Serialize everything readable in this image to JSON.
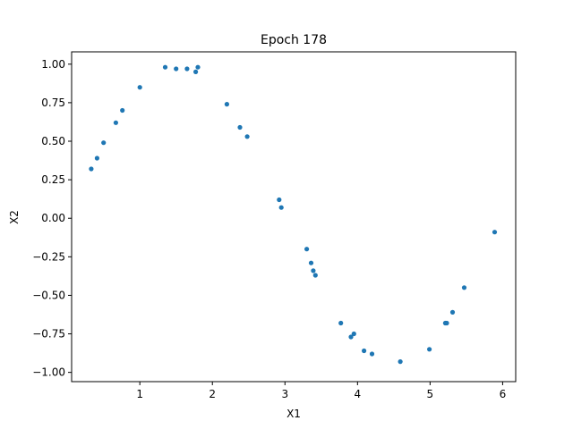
{
  "chart_data": {
    "type": "scatter",
    "title": "Epoch 178",
    "xlabel": "X1",
    "ylabel": "X2",
    "xlim": [
      0.06,
      6.18
    ],
    "ylim": [
      -1.06,
      1.08
    ],
    "x_ticks": [
      1,
      2,
      3,
      4,
      5,
      6
    ],
    "x_tick_labels": [
      "1",
      "2",
      "3",
      "4",
      "5",
      "6"
    ],
    "y_ticks": [
      1.0,
      0.75,
      0.5,
      0.25,
      0.0,
      -0.25,
      -0.5,
      -0.75,
      -1.0
    ],
    "y_tick_labels": [
      "1.00",
      "0.75",
      "0.50",
      "0.25",
      "0.00",
      "−0.25",
      "−0.50",
      "−0.75",
      "−1.00"
    ],
    "grid": false,
    "point_color": "#1f77b4",
    "points": [
      {
        "x": 0.33,
        "y": 0.32
      },
      {
        "x": 0.41,
        "y": 0.39
      },
      {
        "x": 0.5,
        "y": 0.49
      },
      {
        "x": 0.67,
        "y": 0.62
      },
      {
        "x": 0.76,
        "y": 0.7
      },
      {
        "x": 1.0,
        "y": 0.85
      },
      {
        "x": 1.35,
        "y": 0.98
      },
      {
        "x": 1.5,
        "y": 0.97
      },
      {
        "x": 1.65,
        "y": 0.97
      },
      {
        "x": 1.77,
        "y": 0.95
      },
      {
        "x": 1.8,
        "y": 0.98
      },
      {
        "x": 2.2,
        "y": 0.74
      },
      {
        "x": 2.38,
        "y": 0.59
      },
      {
        "x": 2.48,
        "y": 0.53
      },
      {
        "x": 2.92,
        "y": 0.12
      },
      {
        "x": 2.95,
        "y": 0.07
      },
      {
        "x": 3.3,
        "y": -0.2
      },
      {
        "x": 3.36,
        "y": -0.29
      },
      {
        "x": 3.39,
        "y": -0.34
      },
      {
        "x": 3.42,
        "y": -0.37
      },
      {
        "x": 3.77,
        "y": -0.68
      },
      {
        "x": 3.91,
        "y": -0.77
      },
      {
        "x": 3.95,
        "y": -0.75
      },
      {
        "x": 4.09,
        "y": -0.86
      },
      {
        "x": 4.2,
        "y": -0.88
      },
      {
        "x": 4.59,
        "y": -0.93
      },
      {
        "x": 4.99,
        "y": -0.85
      },
      {
        "x": 5.21,
        "y": -0.68
      },
      {
        "x": 5.23,
        "y": -0.68
      },
      {
        "x": 5.31,
        "y": -0.61
      },
      {
        "x": 5.47,
        "y": -0.45
      },
      {
        "x": 5.89,
        "y": -0.09
      }
    ]
  }
}
